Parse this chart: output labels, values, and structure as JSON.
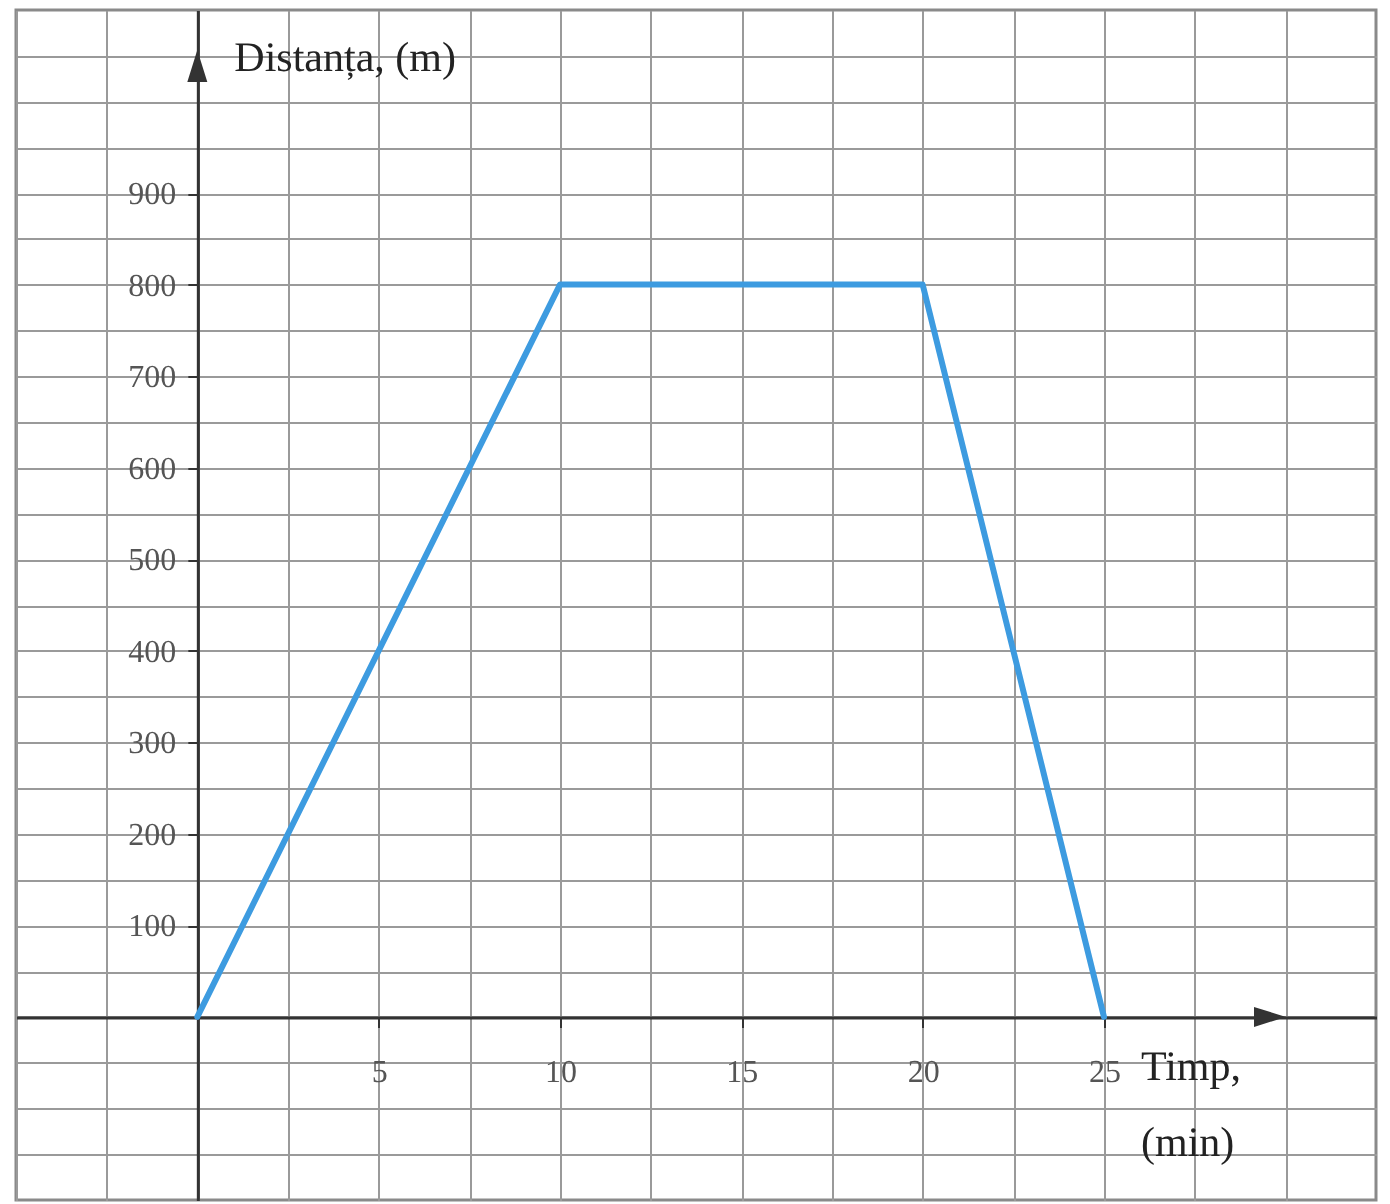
{
  "chart_data": {
    "type": "line",
    "xlabel": "Timp, (min)",
    "ylabel": "Distanța, (m)",
    "x": [
      0,
      10,
      20,
      25
    ],
    "series": [
      {
        "color": "#3d9be0",
        "values": [
          0,
          800,
          800,
          0
        ]
      }
    ],
    "xlim": [
      -5,
      32.5
    ],
    "ylim": [
      -200,
      1100
    ],
    "xticks": [
      {
        "value": -5,
        "label": null
      },
      {
        "value": -2.5,
        "label": null
      },
      {
        "value": 0,
        "label": null
      },
      {
        "value": 2.5,
        "label": null
      },
      5,
      {
        "value": 7.5,
        "label": null
      },
      10,
      {
        "value": 12.5,
        "label": null
      },
      15,
      {
        "value": 17.5,
        "label": null
      },
      20,
      {
        "value": 22.5,
        "label": null
      },
      25,
      {
        "value": 27.5,
        "label": null
      },
      {
        "value": 30,
        "label": null
      }
    ],
    "yticks": [
      {
        "value": -150,
        "label": null
      },
      {
        "value": -100,
        "label": null
      },
      {
        "value": -50,
        "label": null
      },
      {
        "value": 0,
        "label": null
      },
      {
        "value": 50,
        "label": null
      },
      100,
      {
        "value": 150,
        "label": null
      },
      200,
      {
        "value": 250,
        "label": null
      },
      300,
      {
        "value": 350,
        "label": null
      },
      400,
      {
        "value": 450,
        "label": null
      },
      500,
      {
        "value": 550,
        "label": null
      },
      600,
      {
        "value": 650,
        "label": null
      },
      700,
      {
        "value": 750,
        "label": null
      },
      800,
      {
        "value": 850,
        "label": null
      },
      900,
      {
        "value": 950,
        "label": null
      },
      {
        "value": 1000,
        "label": null
      },
      {
        "value": 1050,
        "label": null
      }
    ],
    "grid": true,
    "marker": "none",
    "line_style": "solid"
  }
}
